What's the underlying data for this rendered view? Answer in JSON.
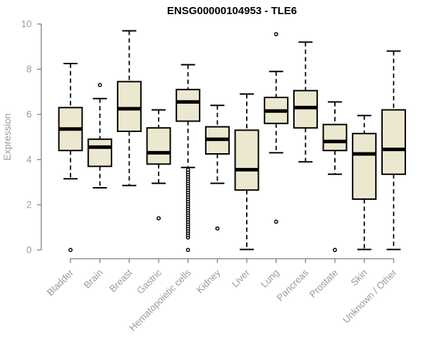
{
  "chart_data": {
    "type": "boxplot",
    "title": "ENSG00000104953 - TLE6",
    "xlabel": "",
    "ylabel": "Expression",
    "ylim": [
      0,
      10
    ],
    "yticks": [
      0,
      2,
      4,
      6,
      8,
      10
    ],
    "grid": false,
    "legend": "none",
    "categories": [
      "Bladder",
      "Brain",
      "Breast",
      "Gastric",
      "Hematopoietic cells",
      "Kidney",
      "Liver",
      "Lung",
      "Pancreas",
      "Prostate",
      "Skin",
      "Unknown / Other"
    ],
    "series": [
      {
        "name": "Bladder",
        "whisker_low": 3.15,
        "q1": 4.4,
        "median": 5.35,
        "q3": 6.3,
        "whisker_high": 8.25,
        "outliers": [
          0.0
        ]
      },
      {
        "name": "Brain",
        "whisker_low": 2.75,
        "q1": 3.7,
        "median": 4.55,
        "q3": 4.9,
        "whisker_high": 6.7,
        "outliers": [
          7.3
        ]
      },
      {
        "name": "Breast",
        "whisker_low": 2.85,
        "q1": 5.25,
        "median": 6.25,
        "q3": 7.45,
        "whisker_high": 9.7,
        "outliers": []
      },
      {
        "name": "Gastric",
        "whisker_low": 2.95,
        "q1": 3.8,
        "median": 4.3,
        "q3": 5.4,
        "whisker_high": 6.2,
        "outliers": [
          1.4
        ]
      },
      {
        "name": "Hematopoietic cells",
        "whisker_low": 3.65,
        "q1": 5.7,
        "median": 6.55,
        "q3": 7.1,
        "whisker_high": 8.2,
        "outliers": [
          0.0,
          0.55,
          0.65,
          0.75,
          0.85,
          0.95,
          1.05,
          1.15,
          1.25,
          1.35,
          1.45,
          1.55,
          1.65,
          1.75,
          1.85,
          1.95,
          2.05,
          2.15,
          2.25,
          2.35,
          2.45,
          2.55,
          2.65,
          2.75,
          2.85,
          2.95,
          3.05,
          3.15,
          3.25,
          3.35,
          3.45,
          3.55
        ]
      },
      {
        "name": "Kidney",
        "whisker_low": 2.95,
        "q1": 4.25,
        "median": 4.9,
        "q3": 5.45,
        "whisker_high": 6.4,
        "outliers": [
          0.95
        ]
      },
      {
        "name": "Liver",
        "whisker_low": 0.02,
        "q1": 2.65,
        "median": 3.55,
        "q3": 5.3,
        "whisker_high": 6.9,
        "outliers": []
      },
      {
        "name": "Lung",
        "whisker_low": 4.3,
        "q1": 5.6,
        "median": 6.15,
        "q3": 6.75,
        "whisker_high": 7.9,
        "outliers": [
          9.55,
          1.25
        ]
      },
      {
        "name": "Pancreas",
        "whisker_low": 3.9,
        "q1": 5.4,
        "median": 6.3,
        "q3": 7.05,
        "whisker_high": 9.2,
        "outliers": []
      },
      {
        "name": "Prostate",
        "whisker_low": 3.35,
        "q1": 4.4,
        "median": 4.8,
        "q3": 5.55,
        "whisker_high": 6.55,
        "outliers": [
          0.0
        ]
      },
      {
        "name": "Skin",
        "whisker_low": 0.02,
        "q1": 2.25,
        "median": 4.25,
        "q3": 5.15,
        "whisker_high": 5.95,
        "outliers": []
      },
      {
        "name": "Unknown / Other",
        "whisker_low": 0.02,
        "q1": 3.35,
        "median": 4.45,
        "q3": 6.2,
        "whisker_high": 8.8,
        "outliers": []
      }
    ],
    "colors": {
      "box_fill": "#ece8d0",
      "box_border": "#000000",
      "median": "#000000",
      "whisker": "#000000",
      "outlier": "#000000",
      "axis_line": "#808080",
      "tick_text": "#9b9b9b",
      "title_text": "#000000",
      "background": "#ffffff"
    }
  }
}
